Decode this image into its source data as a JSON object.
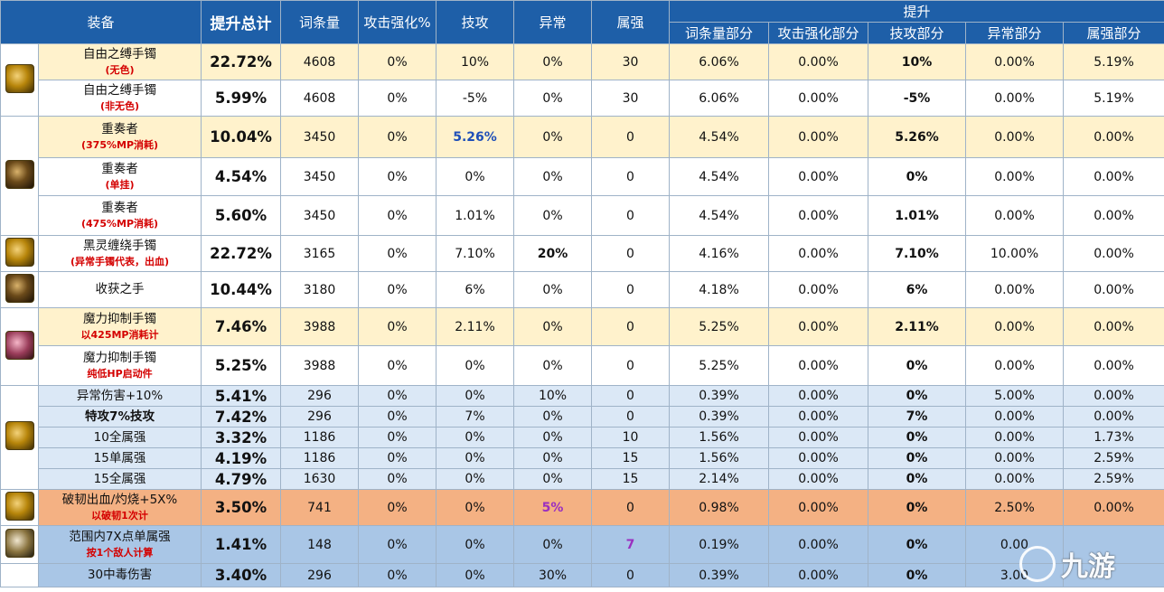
{
  "headers": {
    "equip": "装备",
    "total": "提升总计",
    "words": "词条量",
    "atk": "攻击强化%",
    "skill": "技攻",
    "abn": "异常",
    "elem": "属强",
    "boost": "提升",
    "sub_words": "词条量部分",
    "sub_atk": "攻击强化部分",
    "sub_skill": "技攻部分",
    "sub_abn": "异常部分",
    "sub_elem": "属强部分"
  },
  "rows": [
    {
      "name": "自由之缚手镯",
      "note": "(无色)",
      "total": "22.72%",
      "words": "4608",
      "atk": "0%",
      "skill": "10%",
      "abn": "0%",
      "elem": "30",
      "p_words": "6.06%",
      "p_atk": "0.00%",
      "p_skill": "10%",
      "p_abn": "0.00%",
      "p_elem": "5.19%"
    },
    {
      "name": "自由之缚手镯",
      "note": "(非无色)",
      "total": "5.99%",
      "words": "4608",
      "atk": "0%",
      "skill": "-5%",
      "abn": "0%",
      "elem": "30",
      "p_words": "6.06%",
      "p_atk": "0.00%",
      "p_skill": "-5%",
      "p_abn": "0.00%",
      "p_elem": "5.19%"
    },
    {
      "name": "重奏者",
      "note": "(375%MP消耗)",
      "total": "10.04%",
      "words": "3450",
      "atk": "0%",
      "skill": "5.26%",
      "abn": "0%",
      "elem": "0",
      "p_words": "4.54%",
      "p_atk": "0.00%",
      "p_skill": "5.26%",
      "p_abn": "0.00%",
      "p_elem": "0.00%"
    },
    {
      "name": "重奏者",
      "note": "(单挂)",
      "total": "4.54%",
      "words": "3450",
      "atk": "0%",
      "skill": "0%",
      "abn": "0%",
      "elem": "0",
      "p_words": "4.54%",
      "p_atk": "0.00%",
      "p_skill": "0%",
      "p_abn": "0.00%",
      "p_elem": "0.00%"
    },
    {
      "name": "重奏者",
      "note": "(475%MP消耗)",
      "total": "5.60%",
      "words": "3450",
      "atk": "0%",
      "skill": "1.01%",
      "abn": "0%",
      "elem": "0",
      "p_words": "4.54%",
      "p_atk": "0.00%",
      "p_skill": "1.01%",
      "p_abn": "0.00%",
      "p_elem": "0.00%"
    },
    {
      "name": "黑灵缠绕手镯",
      "note": "(异常手镯代表，出血)",
      "total": "22.72%",
      "words": "3165",
      "atk": "0%",
      "skill": "7.10%",
      "abn": "20%",
      "elem": "0",
      "p_words": "4.16%",
      "p_atk": "0.00%",
      "p_skill": "7.10%",
      "p_abn": "10.00%",
      "p_elem": "0.00%"
    },
    {
      "name": "收获之手",
      "note": "",
      "total": "10.44%",
      "words": "3180",
      "atk": "0%",
      "skill": "6%",
      "abn": "0%",
      "elem": "0",
      "p_words": "4.18%",
      "p_atk": "0.00%",
      "p_skill": "6%",
      "p_abn": "0.00%",
      "p_elem": "0.00%"
    },
    {
      "name": "魔力抑制手镯",
      "note": "以425MP消耗计",
      "total": "7.46%",
      "words": "3988",
      "atk": "0%",
      "skill": "2.11%",
      "abn": "0%",
      "elem": "0",
      "p_words": "5.25%",
      "p_atk": "0.00%",
      "p_skill": "2.11%",
      "p_abn": "0.00%",
      "p_elem": "0.00%"
    },
    {
      "name": "魔力抑制手镯",
      "note": "纯低HP启动件",
      "total": "5.25%",
      "words": "3988",
      "atk": "0%",
      "skill": "0%",
      "abn": "0%",
      "elem": "0",
      "p_words": "5.25%",
      "p_atk": "0.00%",
      "p_skill": "0%",
      "p_abn": "0.00%",
      "p_elem": "0.00%"
    },
    {
      "name": "异常伤害+10%",
      "note": "",
      "total": "5.41%",
      "words": "296",
      "atk": "0%",
      "skill": "0%",
      "abn": "10%",
      "elem": "0",
      "p_words": "0.39%",
      "p_atk": "0.00%",
      "p_skill": "0%",
      "p_abn": "5.00%",
      "p_elem": "0.00%"
    },
    {
      "name": "特攻7%技攻",
      "note": "",
      "total": "7.42%",
      "words": "296",
      "atk": "0%",
      "skill": "7%",
      "abn": "0%",
      "elem": "0",
      "p_words": "0.39%",
      "p_atk": "0.00%",
      "p_skill": "7%",
      "p_abn": "0.00%",
      "p_elem": "0.00%"
    },
    {
      "name": "10全属强",
      "note": "",
      "total": "3.32%",
      "words": "1186",
      "atk": "0%",
      "skill": "0%",
      "abn": "0%",
      "elem": "10",
      "p_words": "1.56%",
      "p_atk": "0.00%",
      "p_skill": "0%",
      "p_abn": "0.00%",
      "p_elem": "1.73%"
    },
    {
      "name": "15单属强",
      "note": "",
      "total": "4.19%",
      "words": "1186",
      "atk": "0%",
      "skill": "0%",
      "abn": "0%",
      "elem": "15",
      "p_words": "1.56%",
      "p_atk": "0.00%",
      "p_skill": "0%",
      "p_abn": "0.00%",
      "p_elem": "2.59%"
    },
    {
      "name": "15全属强",
      "note": "",
      "total": "4.79%",
      "words": "1630",
      "atk": "0%",
      "skill": "0%",
      "abn": "0%",
      "elem": "15",
      "p_words": "2.14%",
      "p_atk": "0.00%",
      "p_skill": "0%",
      "p_abn": "0.00%",
      "p_elem": "2.59%"
    },
    {
      "name": "破韧出血/灼烧+5X%",
      "note": "以破韧1次计",
      "total": "3.50%",
      "words": "741",
      "atk": "0%",
      "skill": "0%",
      "abn": "5%",
      "elem": "0",
      "p_words": "0.98%",
      "p_atk": "0.00%",
      "p_skill": "0%",
      "p_abn": "2.50%",
      "p_elem": "0.00%"
    },
    {
      "name": "范围内7X点单属强",
      "note": "按1个敌人计算",
      "total": "1.41%",
      "words": "148",
      "atk": "0%",
      "skill": "0%",
      "abn": "0%",
      "elem": "7",
      "p_words": "0.19%",
      "p_atk": "0.00%",
      "p_skill": "0%",
      "p_abn": "0.00",
      "p_elem": ""
    },
    {
      "name": "30中毒伤害",
      "note": "",
      "total": "3.40%",
      "words": "296",
      "atk": "0%",
      "skill": "0%",
      "abn": "30%",
      "elem": "0",
      "p_words": "0.39%",
      "p_atk": "0.00%",
      "p_skill": "0%",
      "p_abn": "3.00",
      "p_elem": ""
    }
  ],
  "watermark": "九游"
}
